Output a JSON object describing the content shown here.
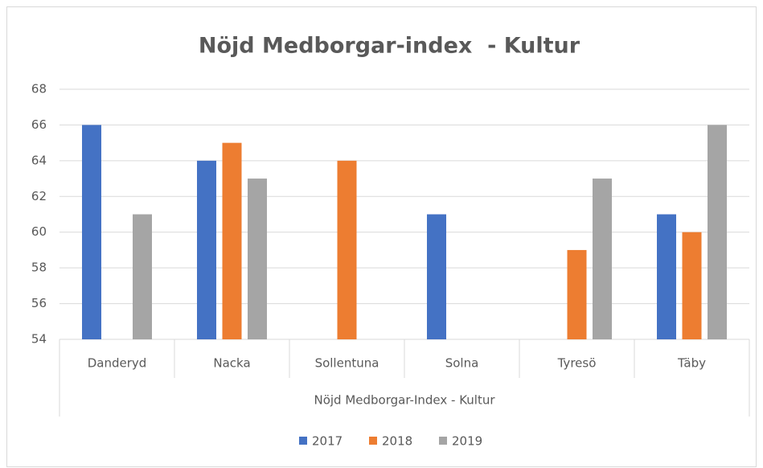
{
  "chart_data": {
    "type": "bar",
    "title": "Nöjd Medborgar-index  - Kultur",
    "x_label": "Nöjd Medborgar-Index - Kultur",
    "categories": [
      "Danderyd",
      "Nacka",
      "Sollentuna",
      "Solna",
      "Tyresö",
      "Täby"
    ],
    "series": [
      {
        "name": "2017",
        "color": "#4472c4",
        "values": [
          66,
          64,
          null,
          61,
          null,
          61
        ]
      },
      {
        "name": "2018",
        "color": "#ed7d31",
        "values": [
          null,
          65,
          64,
          null,
          59,
          60
        ]
      },
      {
        "name": "2019",
        "color": "#a5a5a5",
        "values": [
          61,
          63,
          null,
          null,
          63,
          66
        ]
      }
    ],
    "ylim": [
      54,
      68
    ],
    "yticks": [
      54,
      56,
      58,
      60,
      62,
      64,
      66,
      68
    ],
    "grid": true,
    "legend": "bottom"
  }
}
